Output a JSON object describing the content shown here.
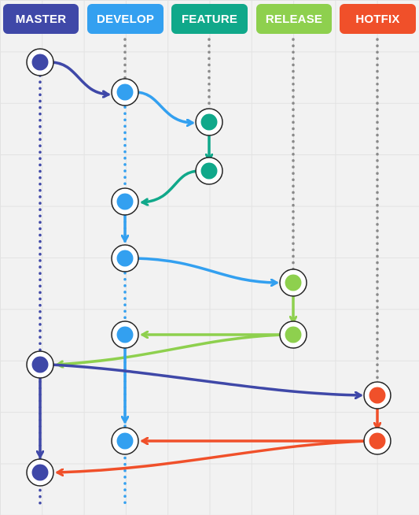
{
  "branches": [
    {
      "id": "master",
      "label": "MASTER",
      "color": "#3f48a8"
    },
    {
      "id": "develop",
      "label": "DEVELOP",
      "color": "#33a0f0"
    },
    {
      "id": "feature",
      "label": "FEATURE",
      "color": "#10a88a"
    },
    {
      "id": "release",
      "label": "RELEASE",
      "color": "#8ed04e"
    },
    {
      "id": "hotfix",
      "label": "HOTFIX",
      "color": "#f0502a"
    }
  ],
  "lifeline_color": "#8a8a8a"
}
